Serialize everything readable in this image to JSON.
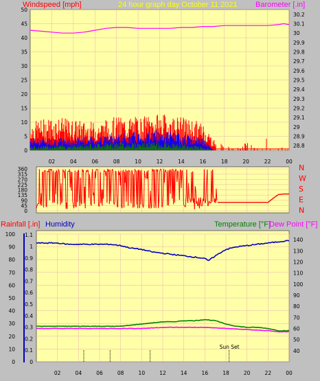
{
  "header": {
    "left_label": "Windspeed [mph]",
    "title": "24 hour graph day   October 11 2021",
    "right_label": "Barometer [.in]"
  },
  "colors": {
    "background": "#c0c0c0",
    "plot_bg": "#ffffa8",
    "grid": "#e8b0b0",
    "windspeed": "#ff0000",
    "gust": "#0000ff",
    "avg": "#008000",
    "barometer": "#ff00ff",
    "humidity": "#0000c0",
    "temperature": "#008000",
    "dewpoint": "#ff00ff",
    "rain": "#0000c0"
  },
  "chart_data": [
    {
      "type": "line",
      "panel": "wind-barometer",
      "y_left_ticks": [
        "0",
        "5",
        "10",
        "15",
        "20",
        "25",
        "30",
        "35",
        "40",
        "45",
        "50"
      ],
      "y_right_ticks": [
        "28.8",
        "28.9",
        "29",
        "29.1",
        "29.2",
        "29.3",
        "29.4",
        "29.5",
        "29.6",
        "29.7",
        "29.8",
        "29.9",
        "30",
        "30.1",
        "30.2"
      ],
      "x_ticks": [
        "02",
        "04",
        "06",
        "08",
        "10",
        "12",
        "14",
        "16",
        "18",
        "20",
        "22",
        "00"
      ],
      "ylim_left": [
        0,
        50
      ],
      "ylim_right": [
        28.75,
        30.25
      ],
      "xlim": [
        0,
        24
      ],
      "series": [
        {
          "axis": "right",
          "x": [
            0,
            1,
            2,
            3,
            4,
            5,
            6,
            7,
            8,
            9,
            10,
            11,
            12,
            13,
            14,
            15,
            16,
            17,
            18,
            19,
            20,
            21,
            22,
            23,
            23.5,
            24
          ],
          "y": [
            30.03,
            30.02,
            30.01,
            30.0,
            30.0,
            30.01,
            30.03,
            30.05,
            30.06,
            30.06,
            30.05,
            30.05,
            30.05,
            30.05,
            30.06,
            30.06,
            30.07,
            30.07,
            30.08,
            30.08,
            30.08,
            30.08,
            30.08,
            30.09,
            30.1,
            30.09
          ]
        }
      ],
      "wind_peak_mph": [
        [
          0,
          10
        ],
        [
          2,
          12
        ],
        [
          4,
          11
        ],
        [
          6,
          10
        ],
        [
          8,
          12
        ],
        [
          10,
          12
        ],
        [
          12,
          13
        ],
        [
          14,
          12
        ],
        [
          16,
          10
        ],
        [
          17,
          4
        ],
        [
          18,
          1
        ],
        [
          20,
          2
        ],
        [
          21,
          1
        ],
        [
          22,
          3
        ],
        [
          23,
          1
        ],
        [
          24,
          1
        ]
      ],
      "gust_mph": [
        [
          0,
          3
        ],
        [
          4,
          3
        ],
        [
          8,
          4
        ],
        [
          12,
          5
        ],
        [
          16,
          3
        ],
        [
          17,
          0
        ],
        [
          24,
          0
        ]
      ],
      "avg_mph": [
        [
          0,
          1
        ],
        [
          8,
          2
        ],
        [
          12,
          2
        ],
        [
          16,
          1
        ],
        [
          17,
          0
        ],
        [
          24,
          0
        ]
      ]
    },
    {
      "type": "line",
      "panel": "wind-direction",
      "y_ticks": [
        "360",
        "315",
        "270",
        "225",
        "180",
        "135",
        "90",
        "45",
        "0"
      ],
      "ylim": [
        0,
        360
      ],
      "compass_labels": [
        "N",
        "W",
        "S",
        "E",
        "N"
      ],
      "series": [
        {
          "x": [
            17.2,
            18,
            19,
            20,
            21,
            22,
            22.5,
            23,
            23.5,
            24
          ],
          "y": [
            72,
            72,
            72,
            72,
            72,
            72,
            108,
            140,
            144,
            144
          ]
        }
      ]
    },
    {
      "type": "line",
      "panel": "temp-humidity-rain",
      "left_label": "Rainfall [.in]",
      "humidity_label": "Humidity",
      "temperature_label": "Temperature [°F]",
      "dewpoint_label": "Dew Point [°F]",
      "y_humidity_ticks": [
        "0",
        "10",
        "20",
        "30",
        "40",
        "50",
        "60",
        "70",
        "80",
        "90",
        "100"
      ],
      "y_rain_ticks": [
        "0",
        "0.1",
        "0.2",
        "0.3",
        "0.4",
        "0.5",
        "0.6",
        "0.7",
        "0.8",
        "0.9",
        "1",
        "1.1"
      ],
      "y_temp_ticks": [
        "40",
        "50",
        "60",
        "70",
        "80",
        "90",
        "100",
        "110",
        "120",
        "130",
        "140"
      ],
      "ylim_humidity": [
        0,
        100
      ],
      "ylim_temp": [
        30,
        145
      ],
      "x_ticks": [
        "02",
        "04",
        "06",
        "08",
        "10",
        "12",
        "14",
        "16",
        "18",
        "20",
        "22",
        "00"
      ],
      "sun_label": "Sun Set",
      "sun_x": 18.3,
      "event_markers": [
        4.5,
        7,
        10.8,
        18.3
      ],
      "series": [
        {
          "name": "Humidity",
          "x": [
            0,
            1,
            2,
            3,
            4,
            5,
            6,
            7,
            8,
            9,
            10,
            11,
            12,
            13,
            14,
            15,
            16,
            16.3,
            17,
            18,
            19,
            20,
            21,
            22,
            23,
            24
          ],
          "y": [
            93,
            93,
            93,
            92,
            92,
            92,
            92,
            92,
            91,
            89,
            88,
            86,
            85,
            84,
            83,
            82,
            81,
            79,
            83,
            88,
            90,
            91,
            92,
            93,
            94,
            95
          ]
        },
        {
          "name": "Temperature",
          "x": [
            0,
            2,
            4,
            6,
            8,
            9,
            10,
            11,
            12,
            13,
            14,
            15,
            16,
            17,
            18,
            19,
            20,
            21,
            22,
            23,
            24
          ],
          "y": [
            62,
            62,
            62,
            62,
            62,
            63,
            64,
            65,
            66,
            66,
            67,
            67,
            68,
            67,
            64,
            62,
            61,
            61,
            60,
            58,
            58
          ]
        },
        {
          "name": "Dew Point",
          "x": [
            0,
            2,
            4,
            6,
            8,
            10,
            12,
            14,
            16,
            18,
            20,
            22,
            23,
            24
          ],
          "y": [
            60,
            60,
            60,
            60,
            60,
            60,
            61,
            61,
            61,
            60,
            59,
            58,
            57,
            57
          ]
        }
      ]
    }
  ]
}
